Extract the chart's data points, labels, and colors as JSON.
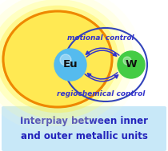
{
  "fig_width": 2.1,
  "fig_height": 1.89,
  "dpi": 100,
  "bg_color": "#ffffff",
  "caption_bg_top": "#d0eaf8",
  "caption_bg_bot": "#b8dcf4",
  "caption_text": "Interplay between inner\nand outer metallic units",
  "caption_color": "#2222bb",
  "caption_fontsize": 8.5,
  "eu_color": "#55bbee",
  "eu_label": "Eu",
  "w_color": "#44cc44",
  "w_label": "W",
  "arrow_color": "#3333cc",
  "top_label": "motional control",
  "bottom_label": "regiochemical control",
  "label_color": "#3333cc",
  "label_fontsize": 6.5,
  "orange_color": "#ee8800",
  "blue_ellipse_color": "#3344bb"
}
